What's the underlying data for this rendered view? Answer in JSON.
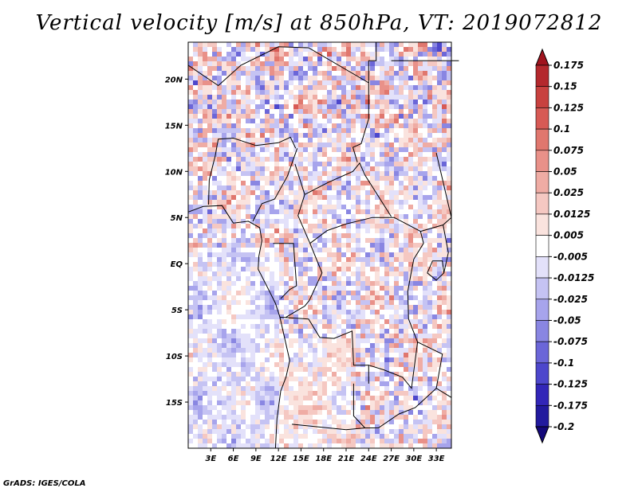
{
  "title": "Vertical velocity [m/s] at 850hPa, VT: 2019072812",
  "credit": "GrADS: IGES/COLA",
  "chart_data": {
    "type": "heatmap",
    "title": "Vertical velocity [m/s] at 850hPa, VT: 2019072812",
    "variable": "Vertical velocity",
    "units": "m/s",
    "level": "850hPa",
    "valid_time": "2019072812",
    "xlim": [
      0,
      35
    ],
    "ylim": [
      -20,
      24
    ],
    "x_ticks": [
      {
        "value": 3,
        "label": "3E"
      },
      {
        "value": 6,
        "label": "6E"
      },
      {
        "value": 9,
        "label": "9E"
      },
      {
        "value": 12,
        "label": "12E"
      },
      {
        "value": 15,
        "label": "15E"
      },
      {
        "value": 18,
        "label": "18E"
      },
      {
        "value": 21,
        "label": "21E"
      },
      {
        "value": 24,
        "label": "24E"
      },
      {
        "value": 27,
        "label": "27E"
      },
      {
        "value": 30,
        "label": "30E"
      },
      {
        "value": 33,
        "label": "33E"
      }
    ],
    "y_ticks": [
      {
        "value": 20,
        "label": "20N"
      },
      {
        "value": 15,
        "label": "15N"
      },
      {
        "value": 10,
        "label": "10N"
      },
      {
        "value": 5,
        "label": "5N"
      },
      {
        "value": 0,
        "label": "EQ"
      },
      {
        "value": -5,
        "label": "5S"
      },
      {
        "value": -10,
        "label": "10S"
      },
      {
        "value": -15,
        "label": "15S"
      }
    ],
    "colorbar": {
      "labels": [
        "0.175",
        "0.15",
        "0.125",
        "0.1",
        "0.075",
        "0.05",
        "0.025",
        "0.0125",
        "0.005",
        "-0.005",
        "-0.0125",
        "-0.025",
        "-0.05",
        "-0.075",
        "-0.1",
        "-0.125",
        "-0.175",
        "-0.2"
      ],
      "colors": [
        "#a0141e",
        "#b4282d",
        "#c8413f",
        "#d75a55",
        "#e0776e",
        "#e99189",
        "#efaca4",
        "#f5c8c2",
        "#fae3de",
        "#ffffff",
        "#e3e1fa",
        "#c5c3f3",
        "#a7a4ec",
        "#8986e2",
        "#6b66d8",
        "#4d47cc",
        "#3226b8",
        "#221a9e",
        "#14087a"
      ]
    }
  }
}
